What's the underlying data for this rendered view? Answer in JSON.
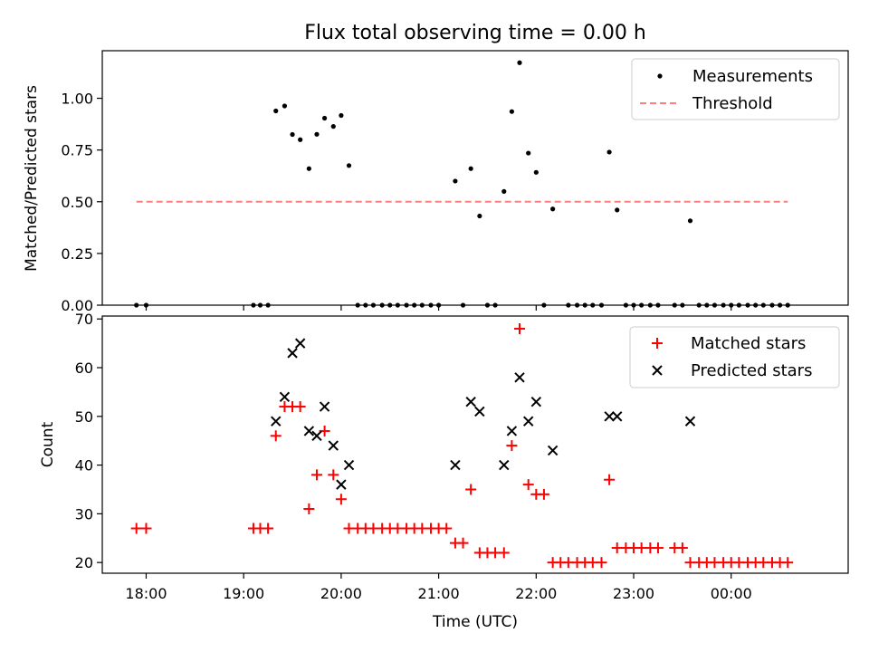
{
  "chart_data": [
    {
      "type": "scatter",
      "title": "Flux total observing time = 0.00 h",
      "xlabel": "",
      "ylabel": "Matched/Predicted stars",
      "ylim": [
        0,
        1.23
      ],
      "yticks": [
        "0.00",
        "0.25",
        "0.50",
        "0.75",
        "1.00"
      ],
      "legend_position": "top-right",
      "series": [
        {
          "name": "Measurements",
          "marker": "dot",
          "color": "#000000",
          "points": [
            [
              17.9,
              0.0
            ],
            [
              18.0,
              0.0
            ],
            [
              19.1,
              0.0
            ],
            [
              19.17,
              0.0
            ],
            [
              19.25,
              0.0
            ],
            [
              19.33,
              0.939
            ],
            [
              19.42,
              0.963
            ],
            [
              19.5,
              0.825
            ],
            [
              19.58,
              0.8
            ],
            [
              19.67,
              0.66
            ],
            [
              19.75,
              0.826
            ],
            [
              19.83,
              0.904
            ],
            [
              19.92,
              0.864
            ],
            [
              20.0,
              0.917
            ],
            [
              20.08,
              0.675
            ],
            [
              20.17,
              0.0
            ],
            [
              20.25,
              0.0
            ],
            [
              20.33,
              0.0
            ],
            [
              20.42,
              0.0
            ],
            [
              20.5,
              0.0
            ],
            [
              20.58,
              0.0
            ],
            [
              20.67,
              0.0
            ],
            [
              20.75,
              0.0
            ],
            [
              20.83,
              0.0
            ],
            [
              20.92,
              0.0
            ],
            [
              21.0,
              0.0
            ],
            [
              21.17,
              0.6
            ],
            [
              21.25,
              0.0
            ],
            [
              21.33,
              0.66
            ],
            [
              21.42,
              0.431
            ],
            [
              21.5,
              0.0
            ],
            [
              21.58,
              0.0
            ],
            [
              21.67,
              0.55
            ],
            [
              21.75,
              0.936
            ],
            [
              21.83,
              1.172
            ],
            [
              21.92,
              0.735
            ],
            [
              22.0,
              0.642
            ],
            [
              22.08,
              0.0
            ],
            [
              22.17,
              0.465
            ],
            [
              22.33,
              0.0
            ],
            [
              22.42,
              0.0
            ],
            [
              22.5,
              0.0
            ],
            [
              22.58,
              0.0
            ],
            [
              22.67,
              0.0
            ],
            [
              22.75,
              0.74
            ],
            [
              22.83,
              0.46
            ],
            [
              22.92,
              0.0
            ],
            [
              23.0,
              0.0
            ],
            [
              23.08,
              0.0
            ],
            [
              23.17,
              0.0
            ],
            [
              23.25,
              0.0
            ],
            [
              23.42,
              0.0
            ],
            [
              23.5,
              0.0
            ],
            [
              23.58,
              0.408
            ],
            [
              23.67,
              0.0
            ],
            [
              23.75,
              0.0
            ],
            [
              23.83,
              0.0
            ],
            [
              23.92,
              0.0
            ],
            [
              24.0,
              0.0
            ],
            [
              24.08,
              0.0
            ],
            [
              24.17,
              0.0
            ],
            [
              24.25,
              0.0
            ],
            [
              24.33,
              0.0
            ],
            [
              24.42,
              0.0
            ],
            [
              24.5,
              0.0
            ],
            [
              24.58,
              0.0
            ]
          ]
        },
        {
          "name": "Threshold",
          "style": "dashed",
          "color": "#ff7f7f",
          "points": [
            [
              17.9,
              0.5
            ],
            [
              24.58,
              0.5
            ]
          ]
        }
      ]
    },
    {
      "type": "scatter",
      "title": "",
      "xlabel": "Time (UTC)",
      "ylabel": "Count",
      "ylim": [
        17.8,
        70.6
      ],
      "yticks": [
        "20",
        "30",
        "40",
        "50",
        "60",
        "70"
      ],
      "xticks": [
        {
          "value": 18,
          "label": "18:00"
        },
        {
          "value": 19,
          "label": "19:00"
        },
        {
          "value": 20,
          "label": "20:00"
        },
        {
          "value": 21,
          "label": "21:00"
        },
        {
          "value": 22,
          "label": "22:00"
        },
        {
          "value": 23,
          "label": "23:00"
        },
        {
          "value": 24,
          "label": "00:00"
        }
      ],
      "xlim": [
        17.55,
        25.2
      ],
      "legend_position": "top-right",
      "series": [
        {
          "name": "Matched stars",
          "marker": "plus",
          "color": "#ff0000",
          "points": [
            [
              17.9,
              27
            ],
            [
              18.0,
              27
            ],
            [
              19.1,
              27
            ],
            [
              19.17,
              27
            ],
            [
              19.25,
              27
            ],
            [
              19.33,
              46
            ],
            [
              19.42,
              52
            ],
            [
              19.5,
              52
            ],
            [
              19.58,
              52
            ],
            [
              19.67,
              31
            ],
            [
              19.75,
              38
            ],
            [
              19.83,
              47
            ],
            [
              19.92,
              38
            ],
            [
              20.0,
              33
            ],
            [
              20.08,
              27
            ],
            [
              20.17,
              27
            ],
            [
              20.25,
              27
            ],
            [
              20.33,
              27
            ],
            [
              20.42,
              27
            ],
            [
              20.5,
              27
            ],
            [
              20.58,
              27
            ],
            [
              20.67,
              27
            ],
            [
              20.75,
              27
            ],
            [
              20.83,
              27
            ],
            [
              20.92,
              27
            ],
            [
              21.0,
              27
            ],
            [
              21.08,
              27
            ],
            [
              21.17,
              24
            ],
            [
              21.25,
              24
            ],
            [
              21.33,
              35
            ],
            [
              21.42,
              22
            ],
            [
              21.5,
              22
            ],
            [
              21.58,
              22
            ],
            [
              21.67,
              22
            ],
            [
              21.75,
              44
            ],
            [
              21.83,
              68
            ],
            [
              21.92,
              36
            ],
            [
              22.0,
              34
            ],
            [
              22.08,
              34
            ],
            [
              22.17,
              20
            ],
            [
              22.25,
              20
            ],
            [
              22.33,
              20
            ],
            [
              22.42,
              20
            ],
            [
              22.5,
              20
            ],
            [
              22.58,
              20
            ],
            [
              22.67,
              20
            ],
            [
              22.75,
              37
            ],
            [
              22.83,
              23
            ],
            [
              22.92,
              23
            ],
            [
              23.0,
              23
            ],
            [
              23.08,
              23
            ],
            [
              23.17,
              23
            ],
            [
              23.25,
              23
            ],
            [
              23.42,
              23
            ],
            [
              23.5,
              23
            ],
            [
              23.58,
              20
            ],
            [
              23.67,
              20
            ],
            [
              23.75,
              20
            ],
            [
              23.83,
              20
            ],
            [
              23.92,
              20
            ],
            [
              24.0,
              20
            ],
            [
              24.08,
              20
            ],
            [
              24.17,
              20
            ],
            [
              24.25,
              20
            ],
            [
              24.33,
              20
            ],
            [
              24.42,
              20
            ],
            [
              24.5,
              20
            ],
            [
              24.58,
              20
            ]
          ]
        },
        {
          "name": "Predicted stars",
          "marker": "x",
          "color": "#000000",
          "points": [
            [
              19.33,
              49
            ],
            [
              19.42,
              54
            ],
            [
              19.5,
              63
            ],
            [
              19.58,
              65
            ],
            [
              19.67,
              47
            ],
            [
              19.75,
              46
            ],
            [
              19.83,
              52
            ],
            [
              19.92,
              44
            ],
            [
              20.0,
              36
            ],
            [
              20.08,
              40
            ],
            [
              21.17,
              40
            ],
            [
              21.33,
              53
            ],
            [
              21.42,
              51
            ],
            [
              21.67,
              40
            ],
            [
              21.75,
              47
            ],
            [
              21.83,
              58
            ],
            [
              21.92,
              49
            ],
            [
              22.0,
              53
            ],
            [
              22.17,
              43
            ],
            [
              22.75,
              50
            ],
            [
              22.83,
              50
            ],
            [
              23.58,
              49
            ]
          ]
        }
      ]
    }
  ]
}
